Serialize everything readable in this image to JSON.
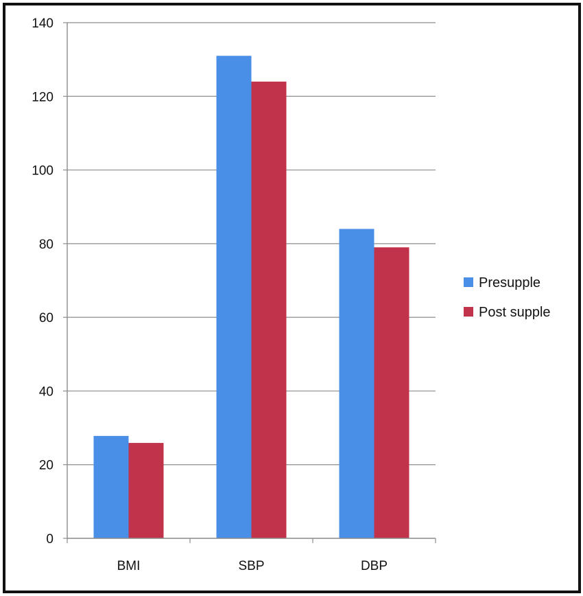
{
  "chart_data": {
    "type": "bar",
    "categories": [
      "BMI",
      "SBP",
      "DBP"
    ],
    "series": [
      {
        "name": "Presupple",
        "values": [
          27.8,
          131,
          84
        ],
        "color": "#4a8fe7"
      },
      {
        "name": "Post supple",
        "values": [
          25.9,
          124,
          79
        ],
        "color": "#c0334b"
      }
    ],
    "ylim": [
      0,
      140
    ],
    "yticks": [
      0,
      20,
      40,
      60,
      80,
      100,
      120,
      140
    ],
    "ytick_labels": [
      "0",
      "20",
      "40",
      "60",
      "80",
      "100",
      "120",
      "140"
    ],
    "grid": true,
    "legend_position": "right",
    "title": "",
    "xlabel": "",
    "ylabel": ""
  }
}
